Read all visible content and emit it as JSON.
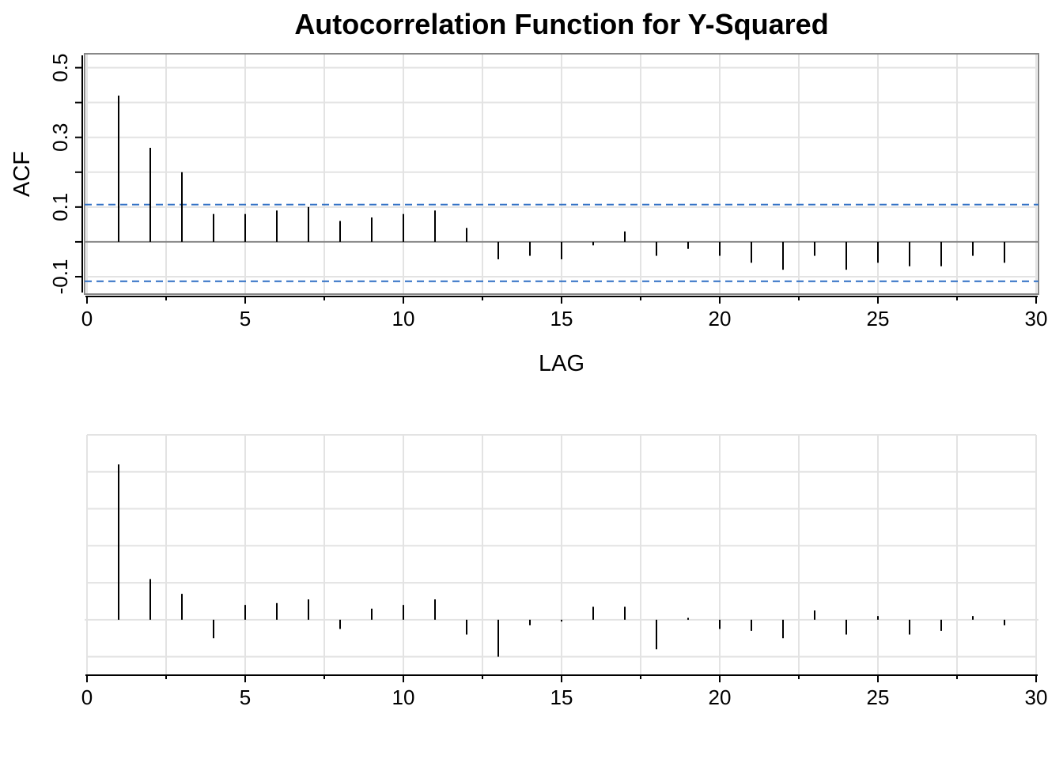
{
  "chart_data": [
    {
      "type": "bar",
      "title": "Autocorrelation Function for Y-Squared",
      "xlabel": "LAG",
      "ylabel": "ACF",
      "xlim": [
        0,
        30
      ],
      "ylim": [
        -0.15,
        0.54
      ],
      "x_ticks": [
        0,
        5,
        10,
        15,
        20,
        25,
        30
      ],
      "y_ticks": [
        -0.1,
        0.1,
        0.3,
        0.5
      ],
      "grid": true,
      "confidence_bands": [
        0.107,
        -0.113
      ],
      "lags": [
        1,
        2,
        3,
        4,
        5,
        6,
        7,
        8,
        9,
        10,
        11,
        12,
        13,
        14,
        15,
        16,
        17,
        18,
        19,
        20,
        21,
        22,
        23,
        24,
        25,
        26,
        27,
        28,
        29
      ],
      "values": [
        0.42,
        0.27,
        0.2,
        0.08,
        0.08,
        0.09,
        0.1,
        0.06,
        0.07,
        0.08,
        0.09,
        0.04,
        -0.05,
        -0.04,
        -0.05,
        -0.01,
        0.03,
        -0.04,
        -0.02,
        -0.04,
        -0.06,
        -0.08,
        -0.04,
        -0.08,
        -0.06,
        -0.07,
        -0.07,
        -0.04,
        -0.06
      ]
    },
    {
      "type": "bar",
      "title": "",
      "xlabel": "",
      "ylabel": "",
      "xlim": [
        0,
        30
      ],
      "ylim": [
        -0.15,
        0.5
      ],
      "x_ticks": [
        0,
        5,
        10,
        15,
        20,
        25,
        30
      ],
      "grid": true,
      "lags": [
        1,
        2,
        3,
        4,
        5,
        6,
        7,
        8,
        9,
        10,
        11,
        12,
        13,
        14,
        15,
        16,
        17,
        18,
        19,
        20,
        21,
        22,
        23,
        24,
        25,
        26,
        27,
        28,
        29
      ],
      "values": [
        0.42,
        0.11,
        0.07,
        -0.05,
        0.04,
        0.045,
        0.055,
        -0.025,
        0.03,
        0.04,
        0.055,
        -0.04,
        -0.1,
        -0.015,
        -0.005,
        0.035,
        0.035,
        -0.08,
        0.005,
        -0.025,
        -0.03,
        -0.05,
        0.025,
        -0.04,
        0.01,
        -0.04,
        -0.03,
        0.01,
        -0.015
      ]
    }
  ]
}
